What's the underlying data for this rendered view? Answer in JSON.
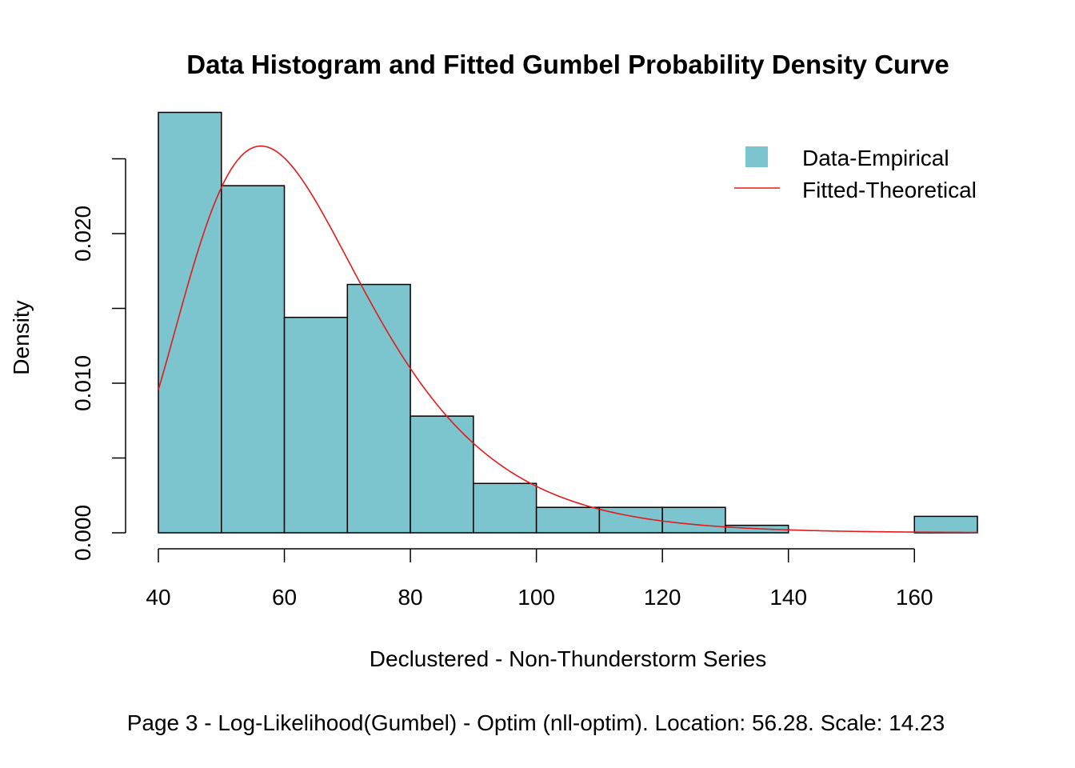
{
  "chart_data": {
    "type": "bar",
    "title": "Data Histogram and Fitted Gumbel Probability Density Curve",
    "xlabel": "Declustered - Non-Thunderstorm Series",
    "ylabel": "Density",
    "subtitle": "Page 3 - Log-Likelihood(Gumbel) - Optim (nll-optim). Location: 56.28. Scale: 14.23",
    "xlim": [
      40,
      170
    ],
    "ylim": [
      0,
      0.0285
    ],
    "x_ticks": [
      "40",
      "60",
      "80",
      "100",
      "120",
      "140",
      "160"
    ],
    "y_ticks": [
      "0.000",
      "0.010",
      "0.020"
    ],
    "y_tick_values": [
      0,
      0.005,
      0.01,
      0.015,
      0.02,
      0.025
    ],
    "bins": [
      {
        "start": 40,
        "end": 50,
        "density": 0.0281
      },
      {
        "start": 50,
        "end": 60,
        "density": 0.0232
      },
      {
        "start": 60,
        "end": 70,
        "density": 0.0144
      },
      {
        "start": 70,
        "end": 80,
        "density": 0.0166
      },
      {
        "start": 80,
        "end": 90,
        "density": 0.0078
      },
      {
        "start": 90,
        "end": 100,
        "density": 0.0033
      },
      {
        "start": 100,
        "end": 110,
        "density": 0.0017
      },
      {
        "start": 110,
        "end": 120,
        "density": 0.0017
      },
      {
        "start": 120,
        "end": 130,
        "density": 0.0017
      },
      {
        "start": 130,
        "end": 140,
        "density": 0.0005
      },
      {
        "start": 140,
        "end": 150,
        "density": 0
      },
      {
        "start": 150,
        "end": 160,
        "density": 0
      },
      {
        "start": 160,
        "end": 170,
        "density": 0.0011
      }
    ],
    "curve": {
      "name": "Fitted-Theoretical",
      "location": 56.28,
      "scale": 14.23,
      "x_range": [
        40,
        170
      ]
    },
    "legend": {
      "position": "top-right",
      "items": [
        {
          "label": "Data-Empirical",
          "kind": "fill"
        },
        {
          "label": "Fitted-Theoretical",
          "kind": "line"
        }
      ]
    },
    "colors": {
      "bar_fill": "#7cc4ce",
      "bar_stroke": "#000000",
      "curve": "#e31a1c"
    }
  }
}
